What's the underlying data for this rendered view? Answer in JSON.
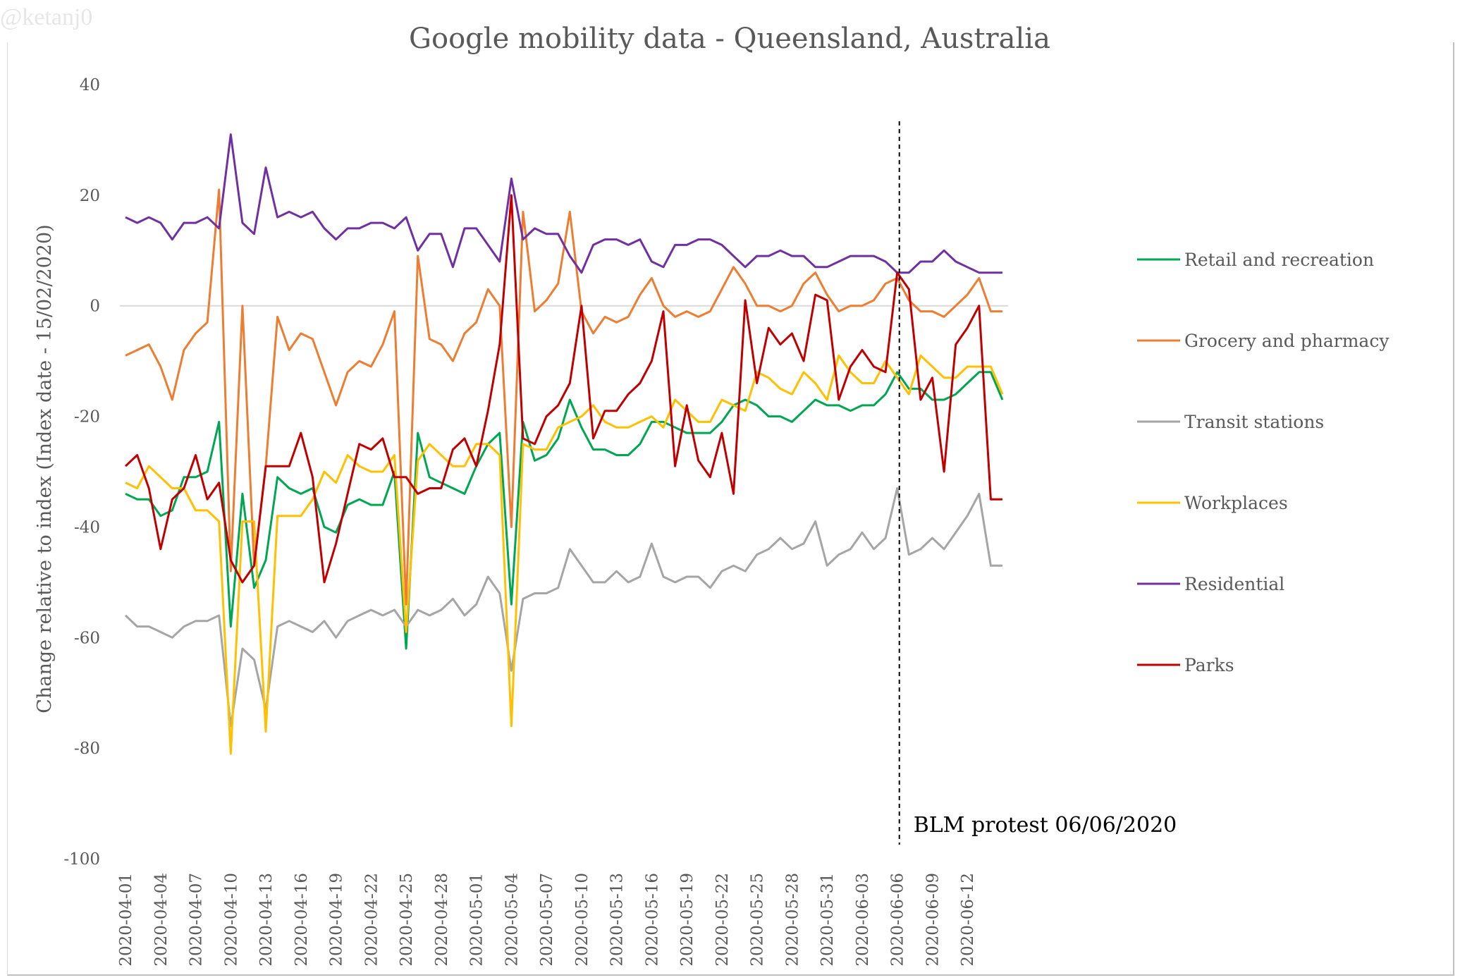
{
  "watermark": "@ketanj0",
  "chart_data": {
    "type": "line",
    "title": "Google mobility data - Queensland, Australia",
    "xlabel": "",
    "ylabel": "Change relative to index (Index date - 15/02/2020)",
    "ylim": [
      -100,
      40
    ],
    "yticks": [
      40,
      20,
      0,
      -20,
      -40,
      -60,
      -80,
      -100
    ],
    "grid": false,
    "zero_line": true,
    "legend_position": "right",
    "x_start": "2020-04-01",
    "x_count": 76,
    "xtick_labels": [
      "2020-04-01",
      "2020-04-04",
      "2020-04-07",
      "2020-04-10",
      "2020-04-13",
      "2020-04-16",
      "2020-04-19",
      "2020-04-22",
      "2020-04-25",
      "2020-04-28",
      "2020-05-01",
      "2020-05-04",
      "2020-05-07",
      "2020-05-10",
      "2020-05-13",
      "2020-05-16",
      "2020-05-19",
      "2020-05-22",
      "2020-05-25",
      "2020-05-28",
      "2020-05-31",
      "2020-06-03",
      "2020-06-06",
      "2020-06-09",
      "2020-06-12"
    ],
    "annotation": {
      "text": "BLM protest 06/06/2020",
      "x_index": 66
    },
    "series": [
      {
        "name": "Retail and recreation",
        "color": "#00a651",
        "values": [
          -34,
          -35,
          -35,
          -38,
          -37,
          -31,
          -31,
          -30,
          -21,
          -58,
          -34,
          -51,
          -46,
          -31,
          -33,
          -34,
          -33,
          -40,
          -41,
          -36,
          -35,
          -36,
          -36,
          -30,
          -62,
          -23,
          -31,
          -32,
          -33,
          -34,
          -29,
          -25,
          -23,
          -54,
          -21,
          -28,
          -27,
          -24,
          -17,
          -22,
          -26,
          -26,
          -27,
          -27,
          -25,
          -21,
          -21,
          -22,
          -23,
          -23,
          -23,
          -21,
          -18,
          -17,
          -18,
          -20,
          -20,
          -21,
          -19,
          -17,
          -18,
          -18,
          -19,
          -18,
          -18,
          -16,
          -12,
          -15,
          -15,
          -17,
          -17,
          -16,
          -14,
          -12,
          -12,
          -17
        ]
      },
      {
        "name": "Grocery and pharmacy",
        "color": "#ed7d31",
        "values": [
          -9,
          -8,
          -7,
          -11,
          -17,
          -8,
          -5,
          -3,
          21,
          -48,
          0,
          -47,
          -29,
          -2,
          -8,
          -5,
          -6,
          -12,
          -18,
          -12,
          -10,
          -11,
          -7,
          -1,
          -54,
          9,
          -6,
          -7,
          -10,
          -5,
          -3,
          3,
          0,
          -40,
          17,
          -1,
          1,
          4,
          17,
          -1,
          -5,
          -2,
          -3,
          -2,
          2,
          5,
          0,
          -2,
          -1,
          -2,
          -1,
          3,
          7,
          4,
          0,
          0,
          -1,
          0,
          4,
          6,
          2,
          -1,
          0,
          0,
          1,
          4,
          5,
          1,
          -1,
          -1,
          -2,
          0,
          2,
          5,
          -1,
          -1
        ]
      },
      {
        "name": "Transit stations",
        "color": "#a5a5a5",
        "values": [
          -56,
          -58,
          -58,
          -59,
          -60,
          -58,
          -57,
          -57,
          -56,
          -76,
          -62,
          -64,
          -73,
          -58,
          -57,
          -58,
          -59,
          -57,
          -60,
          -57,
          -56,
          -55,
          -56,
          -55,
          -58,
          -55,
          -56,
          -55,
          -53,
          -56,
          -54,
          -49,
          -52,
          -66,
          -53,
          -52,
          -52,
          -51,
          -44,
          -47,
          -50,
          -50,
          -48,
          -50,
          -49,
          -43,
          -49,
          -50,
          -49,
          -49,
          -51,
          -48,
          -47,
          -48,
          -45,
          -44,
          -42,
          -44,
          -43,
          -39,
          -47,
          -45,
          -44,
          -41,
          -44,
          -42,
          -33,
          -45,
          -44,
          -42,
          -44,
          -41,
          -38,
          -34,
          -47,
          -47
        ]
      },
      {
        "name": "Workplaces",
        "color": "#ffc000",
        "values": [
          -32,
          -33,
          -29,
          -31,
          -33,
          -33,
          -37,
          -37,
          -39,
          -81,
          -39,
          -39,
          -77,
          -38,
          -38,
          -38,
          -35,
          -30,
          -32,
          -27,
          -29,
          -30,
          -30,
          -27,
          -59,
          -28,
          -25,
          -27,
          -29,
          -29,
          -25,
          -25,
          -27,
          -76,
          -25,
          -26,
          -26,
          -22,
          -21,
          -20,
          -18,
          -21,
          -22,
          -22,
          -21,
          -20,
          -22,
          -17,
          -19,
          -21,
          -21,
          -17,
          -18,
          -19,
          -12,
          -13,
          -15,
          -16,
          -12,
          -14,
          -17,
          -9,
          -12,
          -14,
          -14,
          -10,
          -13,
          -16,
          -9,
          -11,
          -13,
          -13,
          -11,
          -11,
          -11,
          -16
        ]
      },
      {
        "name": "Residential",
        "color": "#7030a0",
        "values": [
          16,
          15,
          16,
          15,
          12,
          15,
          15,
          16,
          14,
          31,
          15,
          13,
          25,
          16,
          17,
          16,
          17,
          14,
          12,
          14,
          14,
          15,
          15,
          14,
          16,
          10,
          13,
          13,
          7,
          14,
          14,
          11,
          8,
          23,
          12,
          14,
          13,
          13,
          9,
          6,
          11,
          12,
          12,
          11,
          12,
          8,
          7,
          11,
          11,
          12,
          12,
          11,
          9,
          7,
          9,
          9,
          10,
          9,
          9,
          7,
          7,
          8,
          9,
          9,
          9,
          8,
          6,
          6,
          8,
          8,
          10,
          8,
          7,
          6,
          6,
          6
        ]
      },
      {
        "name": "Parks",
        "color": "#c00000",
        "values": [
          -29,
          -27,
          -33,
          -44,
          -35,
          -33,
          -27,
          -35,
          -32,
          -46,
          -50,
          -47,
          -29,
          -29,
          -29,
          -23,
          -31,
          -50,
          -43,
          -34,
          -25,
          -26,
          -24,
          -31,
          -31,
          -34,
          -33,
          -33,
          -26,
          -24,
          -29,
          -19,
          -7,
          20,
          -24,
          -25,
          -20,
          -18,
          -14,
          0,
          -24,
          -19,
          -19,
          -16,
          -14,
          -10,
          -1,
          -29,
          -18,
          -28,
          -31,
          -23,
          -34,
          1,
          -14,
          -4,
          -7,
          -5,
          -10,
          2,
          1,
          -17,
          -11,
          -8,
          -11,
          -12,
          6,
          3,
          -17,
          -13,
          -30,
          -7,
          -4,
          0,
          -35,
          -35
        ]
      }
    ]
  }
}
